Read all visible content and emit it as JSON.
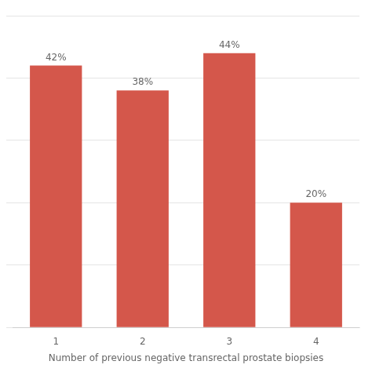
{
  "chart_data": {
    "type": "bar",
    "xlabel": "Number of previous negative transrectal prostate biopsies",
    "categories": [
      "1",
      "2",
      "3",
      "4"
    ],
    "values": [
      42,
      38,
      44,
      20
    ],
    "value_labels": [
      "42%",
      "38%",
      "44%",
      "20%"
    ],
    "data_labels": true,
    "color": "#d4574b",
    "ylim": [
      0,
      50
    ],
    "yticks": [
      0,
      10,
      20,
      30,
      40,
      50
    ],
    "grid": true,
    "tick_labels": "x"
  }
}
